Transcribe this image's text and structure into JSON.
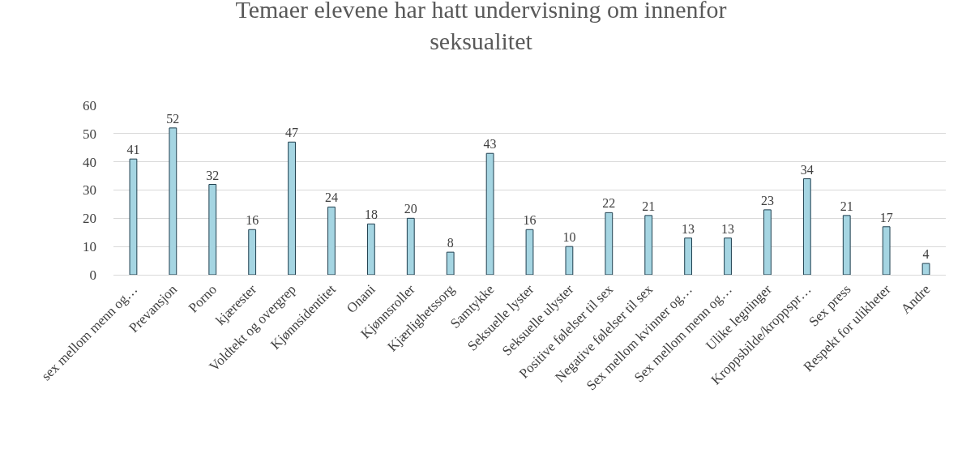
{
  "chart_data": {
    "type": "bar",
    "title": "Temaer elevene har hatt undervisning om innenfor seksualitet",
    "categories": [
      "sex mellom menn og…",
      "Prevansjon",
      "Porno",
      "kjærester",
      "Voldtekt og overgrep",
      "Kjønnsidentitet",
      "Onani",
      "Kjønnsroller",
      "Kjærlighetssorg",
      "Samtykke",
      "Seksuelle lyster",
      "Seksuelle ulyster",
      "Positive følelser til sex",
      "Negative følelser til sex",
      "Sex mellom kvinner og…",
      "Sex mellom menn og…",
      "Ulike legninger",
      "Kroppsbilde/kroppspr…",
      "Sex press",
      "Respekt for ulikheter",
      "Andre"
    ],
    "values": [
      41,
      52,
      32,
      16,
      47,
      24,
      18,
      20,
      8,
      43,
      16,
      10,
      22,
      21,
      13,
      13,
      23,
      34,
      21,
      17,
      4
    ],
    "color": "#a5d5e2",
    "ylim": [
      0,
      60
    ],
    "yticks": [
      0,
      10,
      20,
      30,
      40,
      50,
      60
    ],
    "grid": "y",
    "data_labels": true,
    "legend": false
  }
}
